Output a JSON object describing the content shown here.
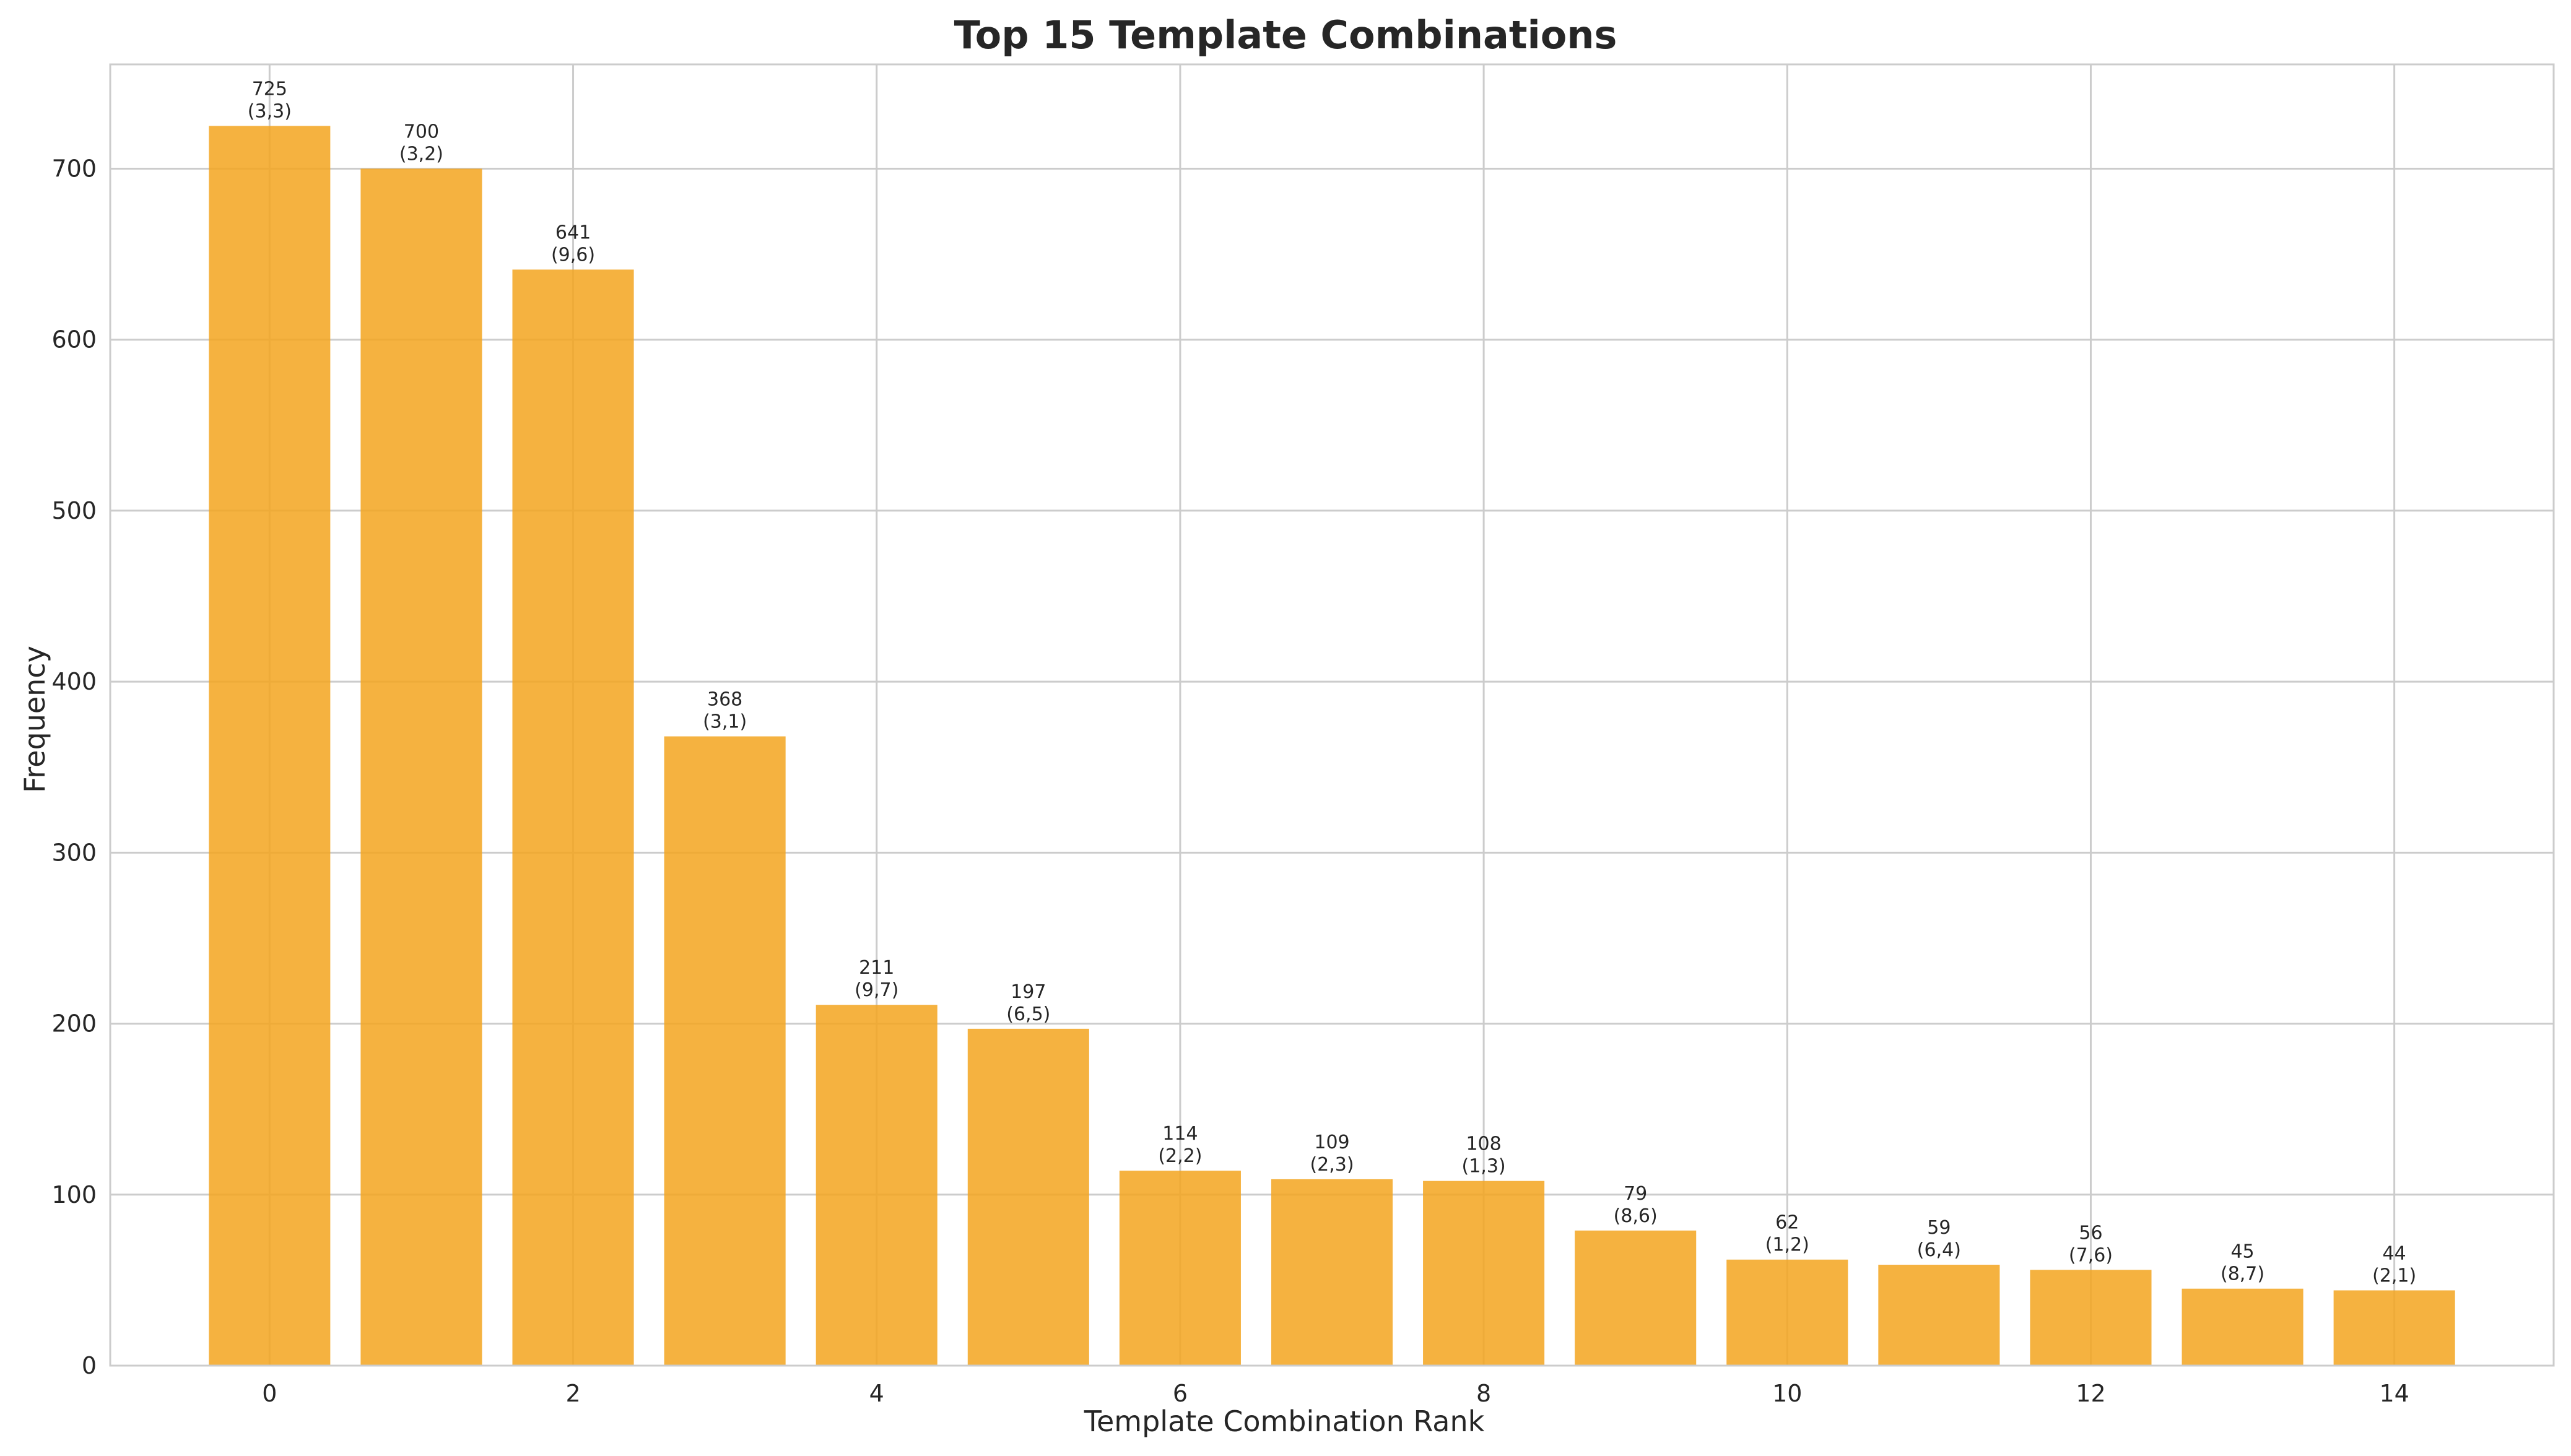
{
  "chart_data": {
    "type": "bar",
    "title": "Top 15 Template Combinations",
    "xlabel": "Template Combination Rank",
    "ylabel": "Frequency",
    "categories": [
      0,
      1,
      2,
      3,
      4,
      5,
      6,
      7,
      8,
      9,
      10,
      11,
      12,
      13,
      14
    ],
    "values": [
      725,
      700,
      641,
      368,
      211,
      197,
      114,
      109,
      108,
      79,
      62,
      59,
      56,
      45,
      44
    ],
    "bar_labels": [
      "(3,3)",
      "(3,2)",
      "(9,6)",
      "(3,1)",
      "(9,7)",
      "(6,5)",
      "(2,2)",
      "(2,3)",
      "(1,3)",
      "(8,6)",
      "(1,2)",
      "(6,4)",
      "(7,6)",
      "(8,7)",
      "(2,1)"
    ],
    "xticks": [
      0,
      2,
      4,
      6,
      8,
      10,
      12,
      14
    ],
    "yticks": [
      0,
      100,
      200,
      300,
      400,
      500,
      600,
      700
    ],
    "xlim": [
      -1.05,
      15.05
    ],
    "ylim": [
      0,
      761
    ],
    "grid": true,
    "legend": "none",
    "bar_color": "#f3a51f"
  }
}
